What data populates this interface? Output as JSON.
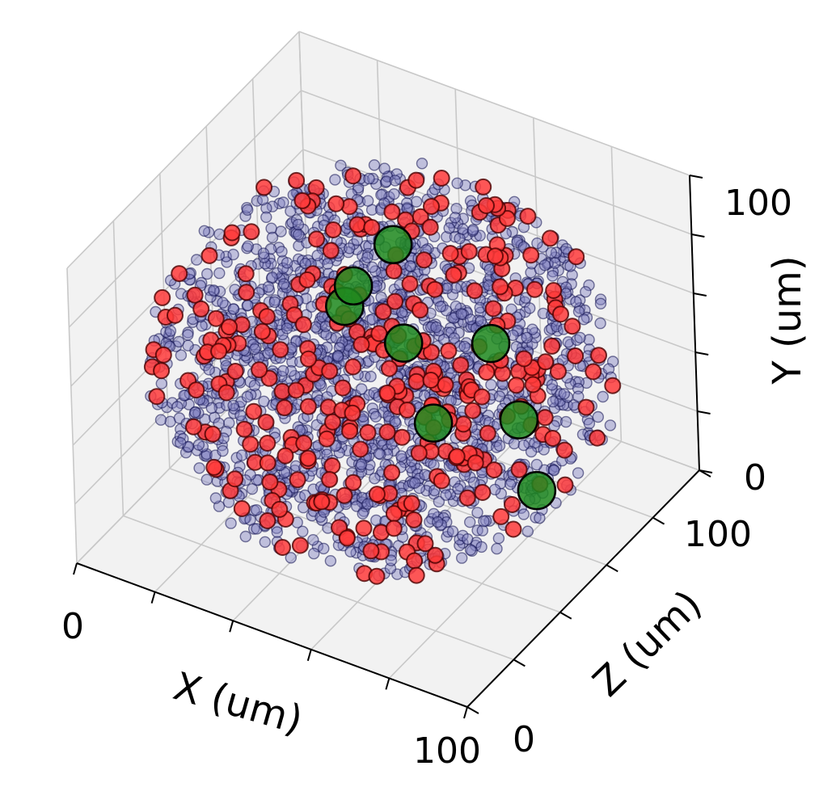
{
  "chart_data": {
    "type": "scatter",
    "projection": "3d",
    "title": "",
    "xlabel": "X (um)",
    "ylabel": "Y (um)",
    "zlabel": "Z (um)",
    "xlim": [
      0,
      100
    ],
    "ylim": [
      0,
      100
    ],
    "zlim": [
      0,
      100
    ],
    "grid": true,
    "tick_labels": {
      "x": [
        "0",
        "100"
      ],
      "y": [
        "0",
        "100"
      ],
      "z": [
        "0",
        "100"
      ]
    },
    "colors": {
      "background_point_fill": "#8080c0",
      "background_point_edge": "#101050",
      "red_point_fill": "#ff3b3b",
      "large_point_fill": "#1e8a1e",
      "pane_fill": "#f2f2f2",
      "grid_line": "#c8c8c8"
    },
    "series": [
      {
        "point_style": "small-translucent-blue",
        "approx_count": 2000,
        "distribution": "uniform sphere, radius ~50 um, centre (50, 50, 50)",
        "points": []
      },
      {
        "point_style": "medium-red",
        "approx_count": 320,
        "distribution": "uniform sphere, radius ~50 um, centre (50, 50, 50)",
        "points": []
      },
      {
        "point_style": "large-green",
        "points": [
          [
            30,
            52,
            88
          ],
          [
            48,
            80,
            38
          ],
          [
            38,
            66,
            58
          ],
          [
            58,
            66,
            46
          ],
          [
            75,
            60,
            30
          ],
          [
            86,
            52,
            48
          ],
          [
            52,
            26,
            92
          ],
          [
            90,
            30,
            48
          ]
        ]
      }
    ]
  }
}
